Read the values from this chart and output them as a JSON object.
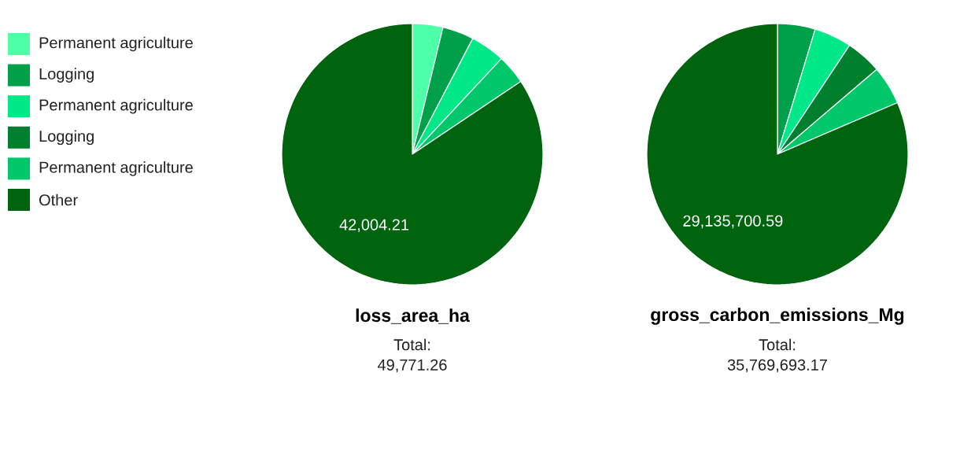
{
  "chart_data": [
    {
      "type": "pie",
      "title": "loss_area_ha",
      "annotations": [
        "Total:",
        "49,771.26"
      ],
      "categories": [
        "Permanent agriculture",
        "Logging",
        "Permanent agriculture",
        "Logging",
        "Permanent agriculture",
        "Other"
      ],
      "values": [
        1880,
        1936,
        2129,
        0,
        1822,
        42004.21
      ],
      "colors": [
        "#4dffa6",
        "#00a04a",
        "#00e887",
        "#00802e",
        "#00c86a",
        "#00640f"
      ],
      "value_labels": [
        null,
        null,
        null,
        null,
        null,
        "42,004.21"
      ],
      "legend": "left"
    },
    {
      "type": "pie",
      "title": "gross_carbon_emissions_Mg",
      "annotations": [
        "Total:",
        "35,769,693.17"
      ],
      "categories": [
        null,
        null,
        null,
        null,
        null,
        null
      ],
      "values": [
        0,
        1669000,
        1659000,
        1590000,
        1716000,
        29135700.59
      ],
      "colors": [
        "#4dffa6",
        "#00a04a",
        "#00e887",
        "#00802e",
        "#00c86a",
        "#00640f"
      ],
      "value_labels": [
        null,
        null,
        null,
        null,
        null,
        "29,135,700.59"
      ]
    }
  ]
}
